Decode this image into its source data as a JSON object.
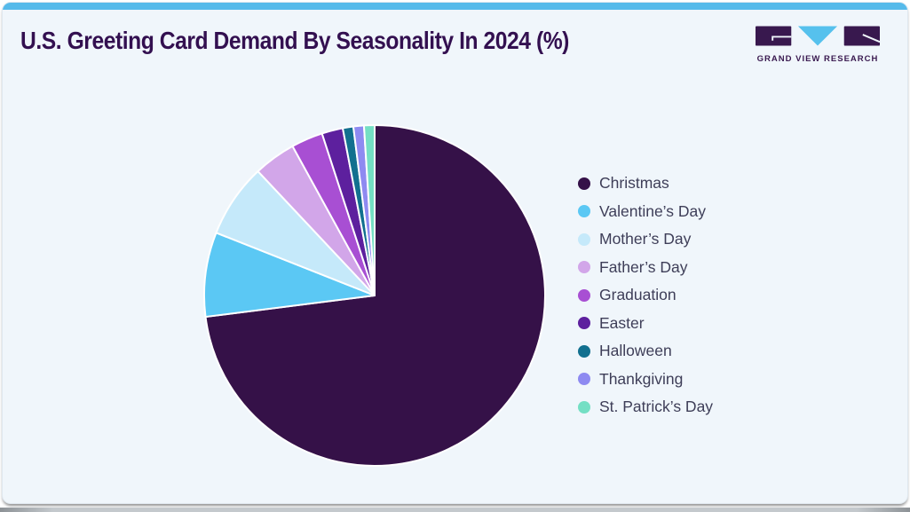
{
  "header": {
    "title": "U.S. Greeting Card Demand By Seasonality In 2024 (%)",
    "brand": "GRAND VIEW RESEARCH"
  },
  "colors": {
    "topbar": "#56BAEA",
    "card_background": "#F0F6FB",
    "title_text": "#331050",
    "legend_text": "#3E3E58",
    "slice_border": "#FFFFFF",
    "logo_dark": "#38184E",
    "logo_blue": "#56C1ED"
  },
  "chart_data": {
    "type": "pie",
    "title": "U.S. Greeting Card Demand By Seasonality In 2024 (%)",
    "unit": "%",
    "start_angle_deg": 0,
    "direction": "clockwise",
    "legend_position": "right",
    "data_labels_shown": false,
    "slices": [
      {
        "label": "Christmas",
        "value": 73,
        "color": "#351148"
      },
      {
        "label": "Valentine’s Day",
        "value": 8,
        "color": "#5BC8F4"
      },
      {
        "label": "Mother’s Day",
        "value": 7,
        "color": "#C5E9FA"
      },
      {
        "label": "Father’s Day",
        "value": 4,
        "color": "#D2A6E9"
      },
      {
        "label": "Graduation",
        "value": 3,
        "color": "#A84FD3"
      },
      {
        "label": "Easter",
        "value": 2,
        "color": "#5D209E"
      },
      {
        "label": "Halloween",
        "value": 1,
        "color": "#12708F"
      },
      {
        "label": "Thankgiving",
        "value": 1,
        "color": "#8E8AF1"
      },
      {
        "label": "St. Patrick’s Day",
        "value": 1,
        "color": "#74DFC4"
      }
    ]
  }
}
